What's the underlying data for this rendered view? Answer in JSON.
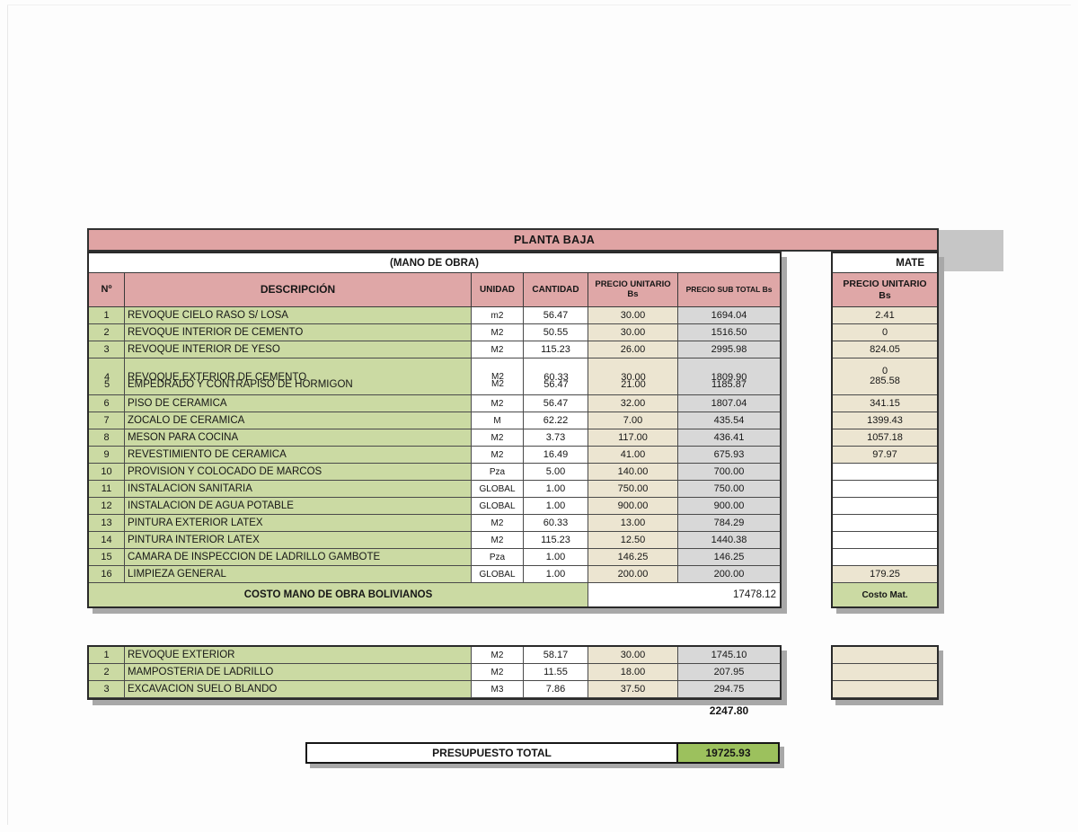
{
  "title": "PLANTA BAJA",
  "subtitle": "(MANO DE OBRA)",
  "materials": {
    "section_header": "MATE",
    "col_header": "PRECIO UNITARIO Bs",
    "footer": "Costo Mat."
  },
  "main_table": {
    "columns": {
      "n": "Nº",
      "desc": "DESCRIPCIÓN",
      "unit": "UNIDAD",
      "qty": "CANTIDAD",
      "unit_price": "PRECIO UNITARIO Bs",
      "subtotal": "PRECIO SUB TOTAL Bs"
    },
    "rows": [
      {
        "n": "1",
        "desc": "REVOQUE CIELO RASO S/ LOSA",
        "unit": "m2",
        "qty": "56.47",
        "unit_price": "30.00",
        "subtotal": "1694.04",
        "mat_price": "2.41"
      },
      {
        "n": "2",
        "desc": "REVOQUE INTERIOR DE CEMENTO",
        "unit": "M2",
        "qty": "50.55",
        "unit_price": "30.00",
        "subtotal": "1516.50",
        "mat_price": "0"
      },
      {
        "n": "3",
        "desc": "REVOQUE INTERIOR DE YESO",
        "unit": "M2",
        "qty": "115.23",
        "unit_price": "26.00",
        "subtotal": "2995.98",
        "mat_price": "824.05"
      },
      {
        "n": "4",
        "desc": "REVOQUE EXTERIOR DE CEMENTO",
        "unit": "M2",
        "qty": "60.33",
        "unit_price": "30.00",
        "subtotal": "1809.90",
        "mat_price": "0",
        "overlap_with_next": true
      },
      {
        "n": "5",
        "desc": "EMPEDRADO Y CONTRAPISO DE HORMIGON",
        "unit": "M2",
        "qty": "56.47",
        "unit_price": "21.00",
        "subtotal": "1185.87",
        "mat_price": "285.58"
      },
      {
        "n": "6",
        "desc": "PISO DE CERAMICA",
        "unit": "M2",
        "qty": "56.47",
        "unit_price": "32.00",
        "subtotal": "1807.04",
        "mat_price": "341.15"
      },
      {
        "n": "7",
        "desc": "ZOCALO DE CERAMICA",
        "unit": "M",
        "qty": "62.22",
        "unit_price": "7.00",
        "subtotal": "435.54",
        "mat_price": "1399.43"
      },
      {
        "n": "8",
        "desc": "MESON PARA COCINA",
        "unit": "M2",
        "qty": "3.73",
        "unit_price": "117.00",
        "subtotal": "436.41",
        "mat_price": "1057.18"
      },
      {
        "n": "9",
        "desc": "REVESTIMIENTO DE CERAMICA",
        "unit": "M2",
        "qty": "16.49",
        "unit_price": "41.00",
        "subtotal": "675.93",
        "mat_price": "97.97"
      },
      {
        "n": "10",
        "desc": "PROVISION Y COLOCADO DE MARCOS",
        "unit": "Pza",
        "qty": "5.00",
        "unit_price": "140.00",
        "subtotal": "700.00",
        "mat_price": ""
      },
      {
        "n": "11",
        "desc": "INSTALACION SANITARIA",
        "unit": "GLOBAL",
        "qty": "1.00",
        "unit_price": "750.00",
        "subtotal": "750.00",
        "mat_price": ""
      },
      {
        "n": "12",
        "desc": "INSTALACION DE AGUA POTABLE",
        "unit": "GLOBAL",
        "qty": "1.00",
        "unit_price": "900.00",
        "subtotal": "900.00",
        "mat_price": ""
      },
      {
        "n": "13",
        "desc": "PINTURA EXTERIOR LATEX",
        "unit": "M2",
        "qty": "60.33",
        "unit_price": "13.00",
        "subtotal": "784.29",
        "mat_price": ""
      },
      {
        "n": "14",
        "desc": "PINTURA INTERIOR LATEX",
        "unit": "M2",
        "qty": "115.23",
        "unit_price": "12.50",
        "subtotal": "1440.38",
        "mat_price": ""
      },
      {
        "n": "15",
        "desc": "CAMARA DE INSPECCION DE LADRILLO GAMBOTE",
        "unit": "Pza",
        "qty": "1.00",
        "unit_price": "146.25",
        "subtotal": "146.25",
        "mat_price": ""
      },
      {
        "n": "16",
        "desc": "LIMPIEZA GENERAL",
        "unit": "GLOBAL",
        "qty": "1.00",
        "unit_price": "200.00",
        "subtotal": "200.00",
        "mat_price": "179.25"
      }
    ],
    "footer_label": "COSTO MANO DE OBRA BOLIVIANOS",
    "footer_total": "17478.12"
  },
  "extra_table": {
    "rows": [
      {
        "n": "1",
        "desc": "REVOQUE EXTERIOR",
        "unit": "M2",
        "qty": "58.17",
        "unit_price": "30.00",
        "subtotal": "1745.10"
      },
      {
        "n": "2",
        "desc": "MAMPOSTERIA DE LADRILLO",
        "unit": "M2",
        "qty": "11.55",
        "unit_price": "18.00",
        "subtotal": "207.95"
      },
      {
        "n": "3",
        "desc": "EXCAVACION SUELO BLANDO",
        "unit": "M3",
        "qty": "7.86",
        "unit_price": "37.50",
        "subtotal": "294.75"
      }
    ],
    "total": "2247.80"
  },
  "summary": {
    "label": "PRESUPUESTO TOTAL",
    "value": "19725.93"
  },
  "colors": {
    "header_pink": "#dfa7a7",
    "row_green": "#cbdaa3",
    "cell_beige": "#ece5d1",
    "cell_gray": "#d8d8d8",
    "summary_green": "#9cc15d"
  }
}
